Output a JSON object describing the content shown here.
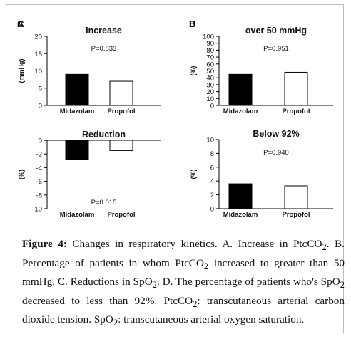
{
  "figure": {
    "caption_label": "Figure 4:",
    "caption_parts": [
      {
        "t": " Changes in respiratory kinetics. A. Increase in PtcCO"
      },
      {
        "sub": "2"
      },
      {
        "t": ". B. Percentage of patients in whom PtcCO"
      },
      {
        "sub": "2"
      },
      {
        "t": " increased to greater than 50 mmHg. C. Reductions in SpO"
      },
      {
        "sub": "2"
      },
      {
        "t": ". D. The percentage of patients who's SpO"
      },
      {
        "sub": "2"
      },
      {
        "t": " decreased to less than 92%. PtcCO"
      },
      {
        "sub": "2"
      },
      {
        "t": ": transcutaneous arterial carbon dioxide tension. SpO"
      },
      {
        "sub": "2"
      },
      {
        "t": ": transcutaneous arterial oxygen saturation."
      }
    ]
  },
  "colors": {
    "midazolam": "#000000",
    "propofol": "#ffffff",
    "axis": "#000000"
  },
  "chart_data": [
    {
      "type": "bar",
      "panel": "A",
      "title": "Increase",
      "ylabel": "(mmHg)",
      "categories": [
        "Midazolam",
        "Propofol"
      ],
      "values": [
        9,
        7
      ],
      "ylim": [
        0,
        20
      ],
      "yticks": [
        0,
        5,
        10,
        15,
        20
      ],
      "annotation": "P=0.833"
    },
    {
      "type": "bar",
      "panel": "B",
      "title": "over 50 mmHg",
      "ylabel": "(%)",
      "categories": [
        "Midazolam",
        "Propofol"
      ],
      "values": [
        45,
        48
      ],
      "ylim": [
        0,
        100
      ],
      "yticks": [
        0,
        10,
        20,
        30,
        40,
        50,
        60,
        70,
        80,
        90,
        100
      ],
      "annotation": "P=0.951"
    },
    {
      "type": "bar",
      "panel": "C",
      "title": "Reduction",
      "ylabel": "(%)",
      "categories": [
        "Midazolam",
        "Propofol"
      ],
      "values": [
        -2.8,
        -1.5
      ],
      "ylim": [
        -10,
        0
      ],
      "yticks": [
        0,
        -2,
        -4,
        -6,
        -8,
        -10
      ],
      "annotation": "P=0.015"
    },
    {
      "type": "bar",
      "panel": "D",
      "title": "Below 92%",
      "ylabel": "(%)",
      "categories": [
        "Midazolam",
        "Propofol"
      ],
      "values": [
        3.6,
        3.3
      ],
      "ylim": [
        0,
        10
      ],
      "yticks": [
        0,
        2,
        4,
        6,
        8,
        10
      ],
      "annotation": "P=0.940"
    }
  ]
}
